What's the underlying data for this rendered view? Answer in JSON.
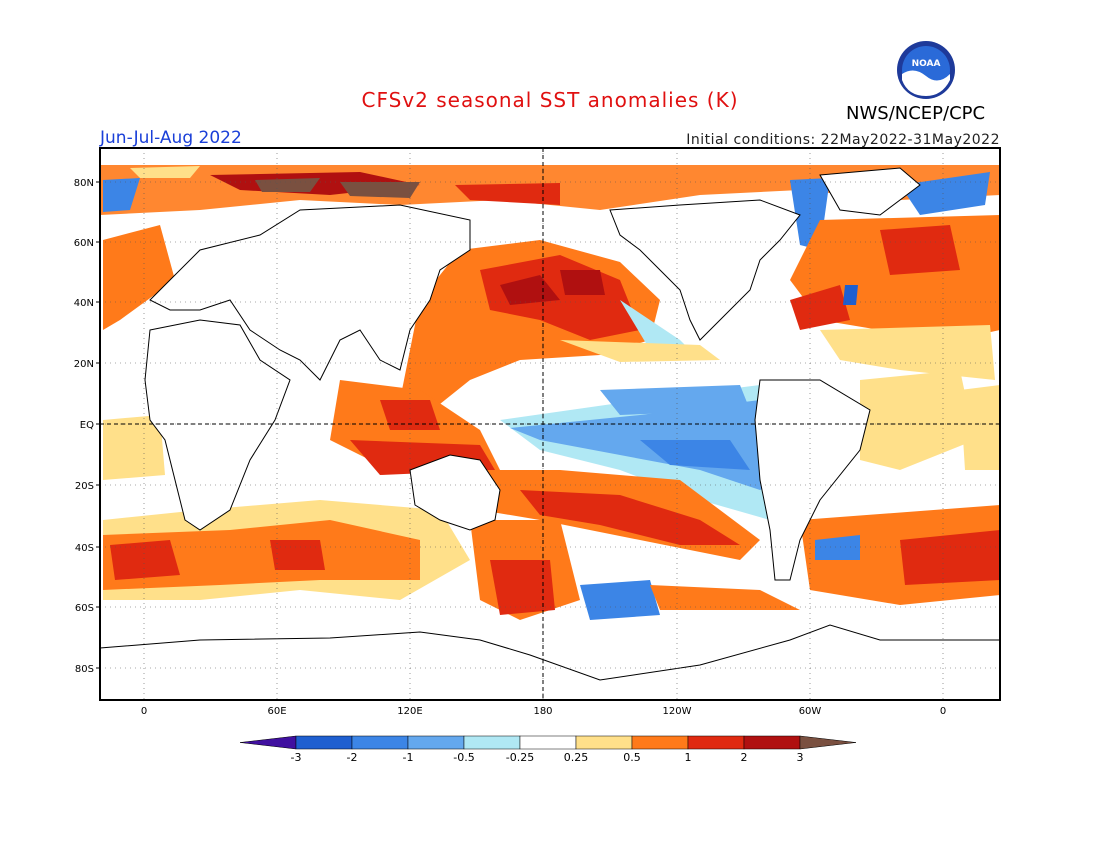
{
  "header": {
    "title": "CFSv2 seasonal SST anomalies (K)",
    "season": "Jun-Jul-Aug 2022",
    "initial_conditions": "Initial conditions: 22May2022-31May2022",
    "agency": "NWS/NCEP/CPC",
    "logo_text": "NOAA"
  },
  "map": {
    "lat_labels": [
      "80N",
      "60N",
      "40N",
      "20N",
      "EQ",
      "20S",
      "40S",
      "60S",
      "80S"
    ],
    "lon_labels": [
      "0",
      "60E",
      "120E",
      "180",
      "120W",
      "60W",
      "0"
    ]
  },
  "colorbar": {
    "tick_labels": [
      "-3",
      "-2",
      "-1",
      "-0.5",
      "-0.25",
      "0.25",
      "0.5",
      "1",
      "2",
      "3"
    ],
    "colors": [
      "#4010a0",
      "#1f5fd0",
      "#3c85e6",
      "#64a8ee",
      "#b0e8f4",
      "#ffffff",
      "#ffe08a",
      "#ff7a1a",
      "#e02a10",
      "#b01010",
      "#7a5040"
    ]
  }
}
